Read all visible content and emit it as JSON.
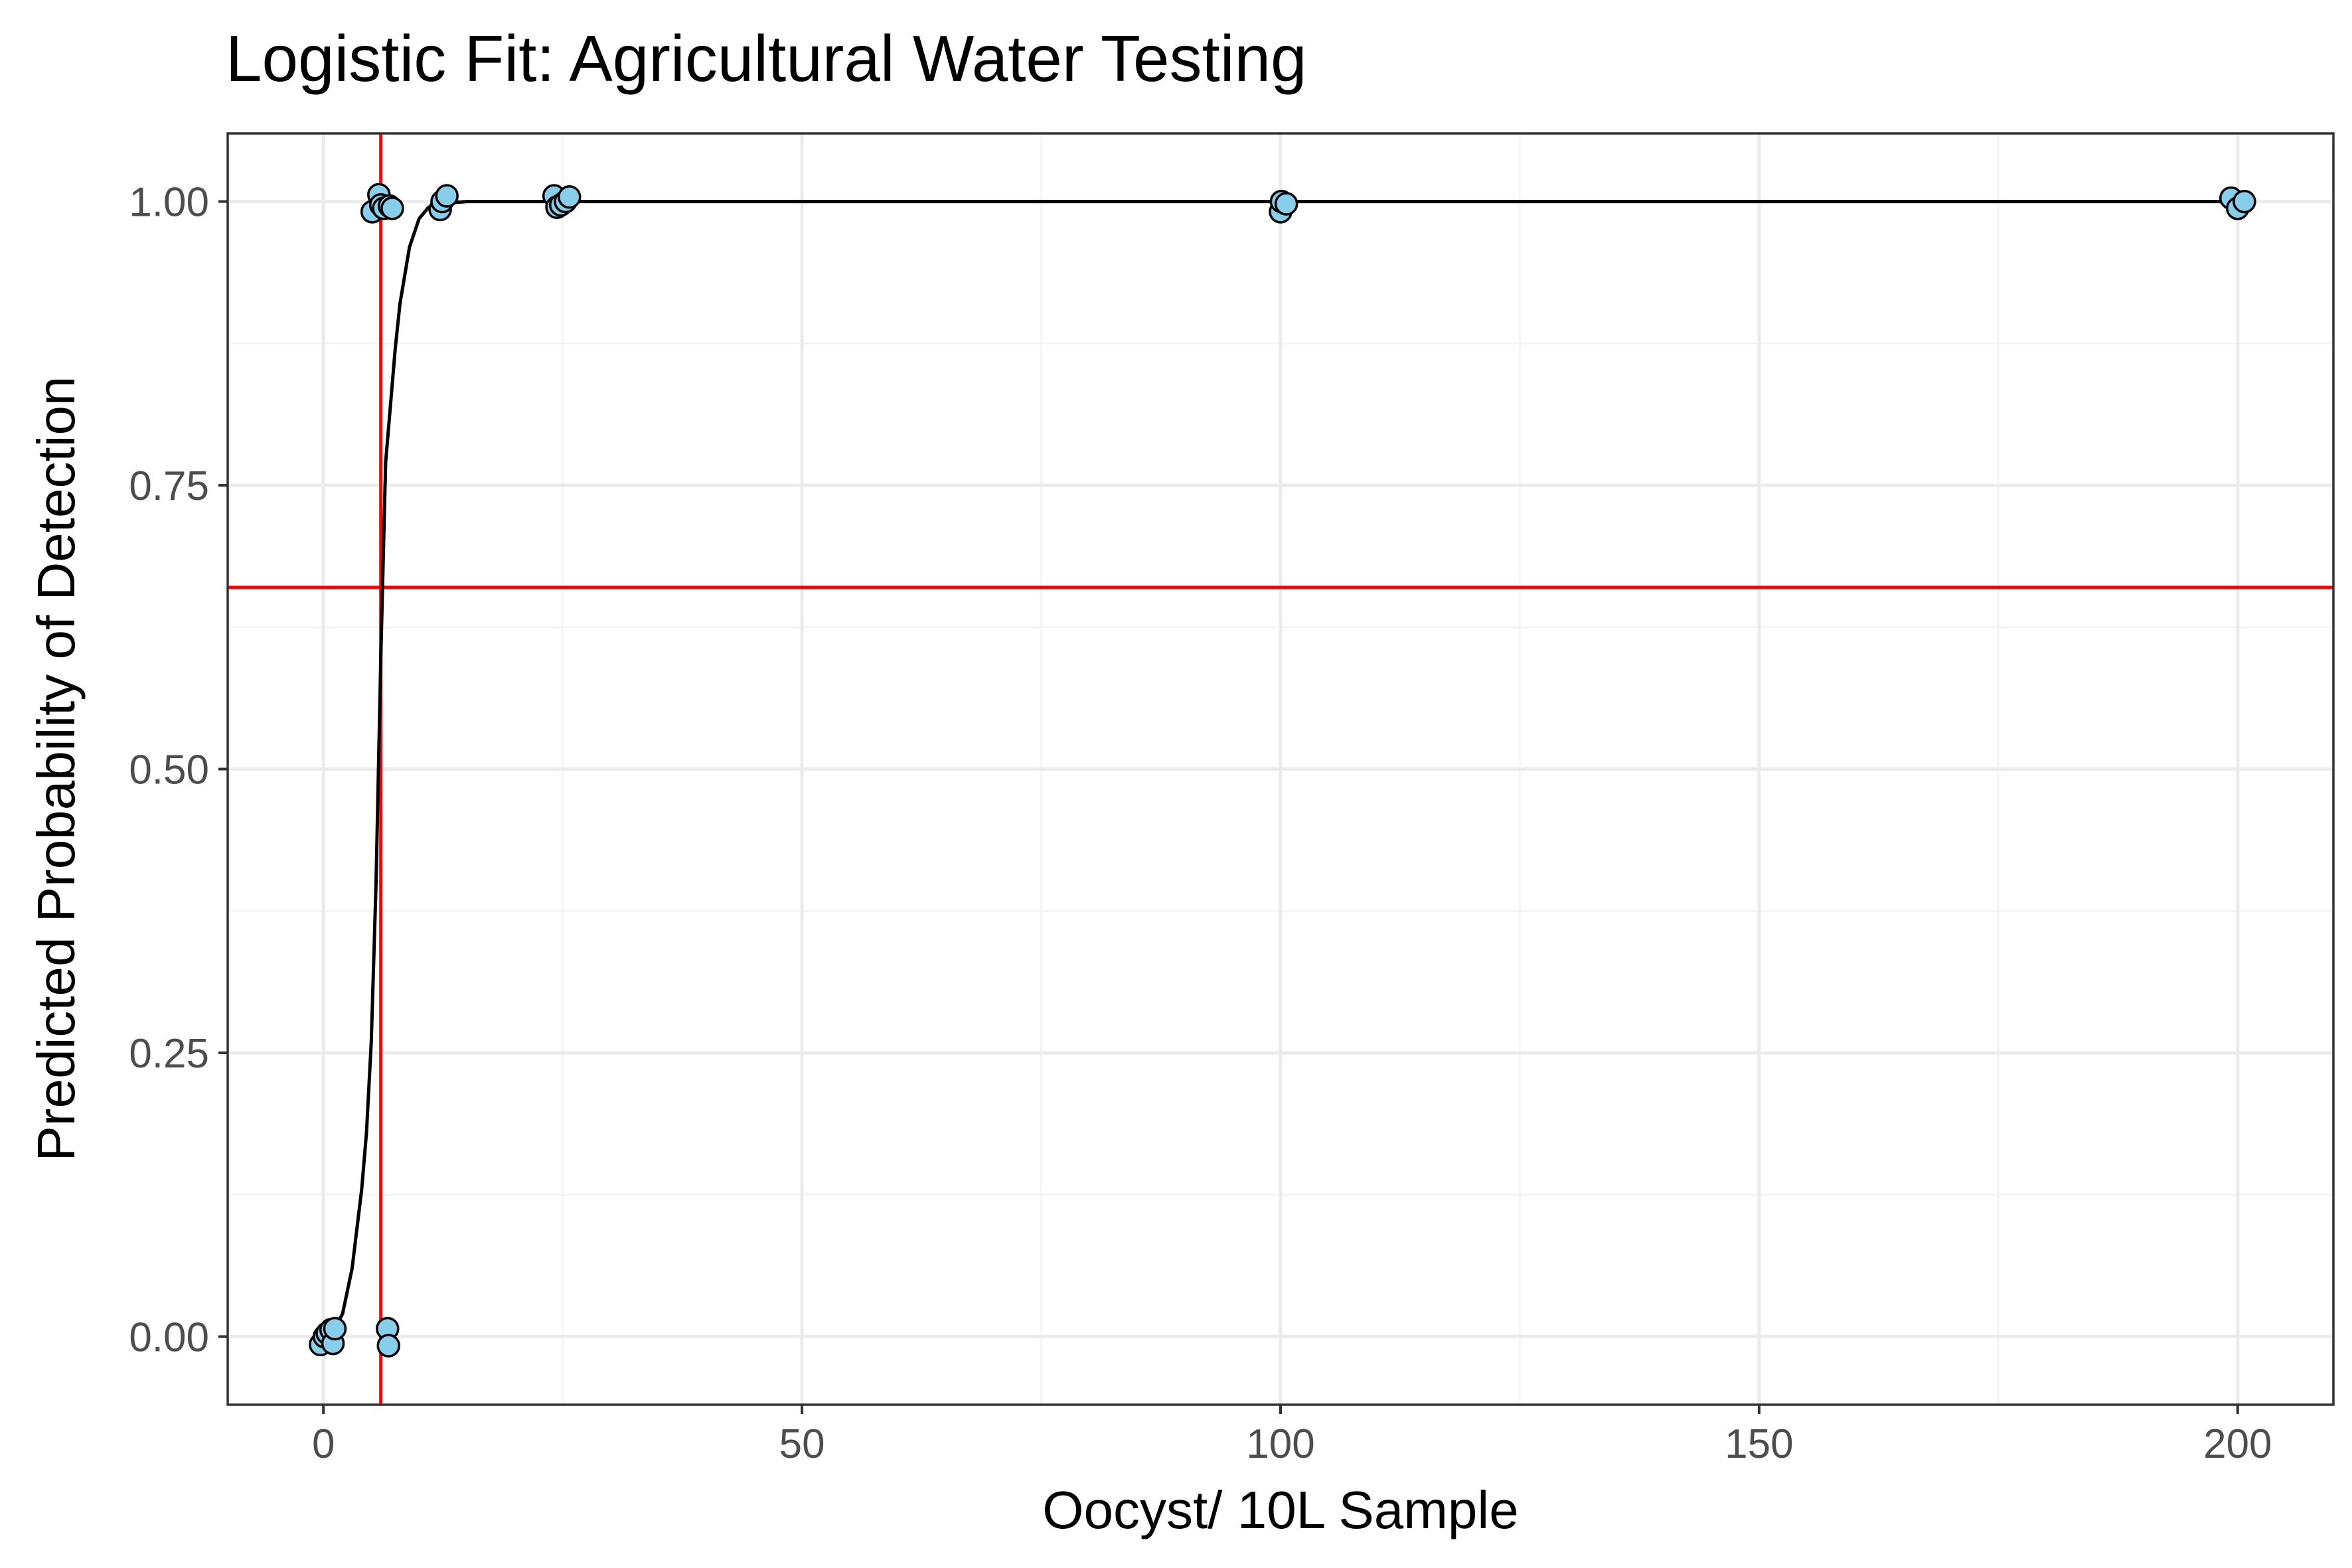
{
  "chart_data": {
    "type": "scatter",
    "title": "Logistic Fit: Agricultural Water Testing",
    "xlabel": "Oocyst/ 10L Sample",
    "ylabel": "Predicted Probability of Detection",
    "xlim": [
      -10,
      210
    ],
    "ylim": [
      -0.06,
      1.06
    ],
    "x_ticks": [
      0,
      50,
      100,
      150,
      200
    ],
    "x_tick_labels": [
      "0",
      "50",
      "100",
      "150",
      "200"
    ],
    "y_ticks": [
      0,
      0.25,
      0.5,
      0.75,
      1
    ],
    "y_tick_labels": [
      "0.00",
      "0.25",
      "0.50",
      "0.75",
      "1.00"
    ],
    "grid": true,
    "legend": "none",
    "colors": {
      "points_fill": "#87ceeb",
      "points_stroke": "#000000",
      "fit_line": "#000000",
      "reference_lines": "#ff0000",
      "grid_major": "#ebebeb",
      "grid_minor": "#f3f3f3",
      "panel_border": "#333333"
    },
    "reference_lines": {
      "vline_x": 6,
      "hline_y": 0.66
    },
    "fit_curve": {
      "x": [
        0,
        1,
        2,
        3,
        4,
        4.5,
        5,
        5.5,
        6,
        6.5,
        7,
        7.5,
        8,
        9,
        10,
        11,
        12,
        15,
        20,
        30,
        50,
        100,
        150,
        200
      ],
      "y": [
        0.0,
        0.005,
        0.02,
        0.06,
        0.13,
        0.18,
        0.26,
        0.4,
        0.6,
        0.77,
        0.82,
        0.87,
        0.91,
        0.96,
        0.985,
        0.995,
        0.998,
        1.0,
        1.0,
        1.0,
        1.0,
        1.0,
        1.0,
        1.0
      ]
    },
    "points": [
      {
        "x": -0.3,
        "y": -0.007
      },
      {
        "x": 0.1,
        "y": 0.0
      },
      {
        "x": 0.4,
        "y": 0.003
      },
      {
        "x": 0.8,
        "y": 0.006
      },
      {
        "x": 1.0,
        "y": -0.006
      },
      {
        "x": 1.2,
        "y": 0.007
      },
      {
        "x": 5.1,
        "y": 0.991
      },
      {
        "x": 5.8,
        "y": 1.006
      },
      {
        "x": 6.0,
        "y": 0.997
      },
      {
        "x": 6.3,
        "y": 0.994
      },
      {
        "x": 6.9,
        "y": 0.996
      },
      {
        "x": 7.2,
        "y": 0.994
      },
      {
        "x": 6.7,
        "y": 0.007
      },
      {
        "x": 6.8,
        "y": -0.008
      },
      {
        "x": 12.2,
        "y": 0.993
      },
      {
        "x": 12.4,
        "y": 1.0
      },
      {
        "x": 12.9,
        "y": 1.005
      },
      {
        "x": 24.1,
        "y": 1.005
      },
      {
        "x": 24.4,
        "y": 0.995
      },
      {
        "x": 24.8,
        "y": 0.997
      },
      {
        "x": 25.3,
        "y": 1.0
      },
      {
        "x": 25.7,
        "y": 1.004
      },
      {
        "x": 100.0,
        "y": 0.991
      },
      {
        "x": 100.1,
        "y": 1.0
      },
      {
        "x": 100.6,
        "y": 0.998
      },
      {
        "x": 199.3,
        "y": 1.003
      },
      {
        "x": 200.0,
        "y": 0.994
      },
      {
        "x": 200.7,
        "y": 1.0
      }
    ]
  }
}
